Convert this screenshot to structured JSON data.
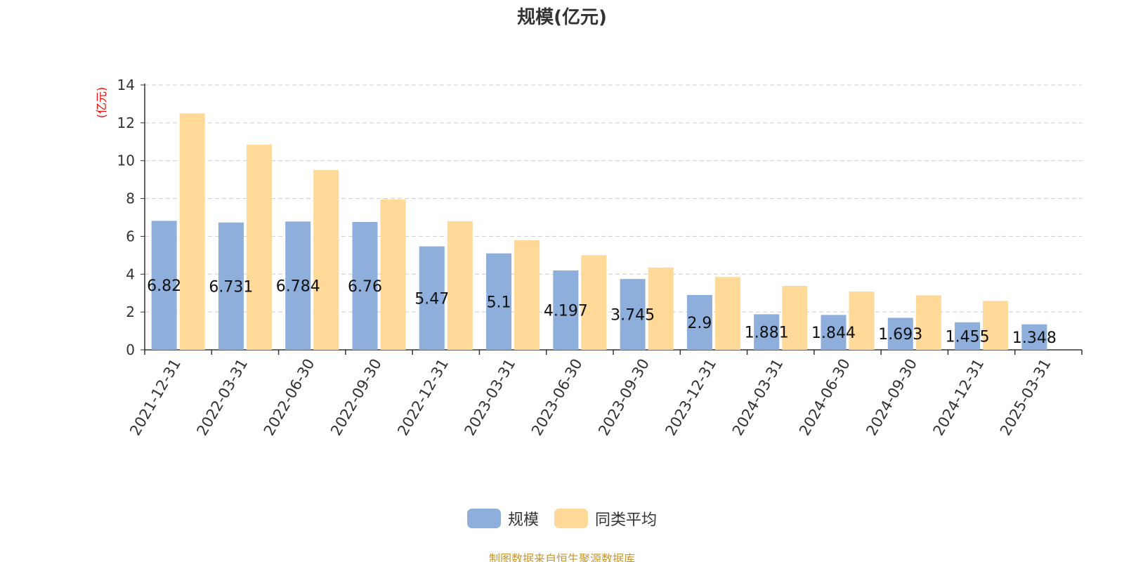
{
  "chart_data": {
    "type": "bar",
    "title": "规模(亿元)",
    "ylabel": "(亿元)",
    "ylim": [
      0,
      14
    ],
    "yticks": [
      0,
      2,
      4,
      6,
      8,
      10,
      12,
      14
    ],
    "categories": [
      "2021-12-31",
      "2022-03-31",
      "2022-06-30",
      "2022-09-30",
      "2022-12-31",
      "2023-03-31",
      "2023-06-30",
      "2023-09-30",
      "2023-12-31",
      "2024-03-31",
      "2024-06-30",
      "2024-09-30",
      "2024-12-31",
      "2025-03-31"
    ],
    "series": [
      {
        "name": "规模",
        "color": "#8eaedc",
        "values": [
          6.82,
          6.731,
          6.784,
          6.76,
          5.47,
          5.1,
          4.197,
          3.745,
          2.9,
          1.881,
          1.844,
          1.693,
          1.455,
          1.348
        ],
        "labels": [
          "6.82",
          "6.731",
          "6.784",
          "6.76",
          "5.47",
          "5.1",
          "4.197",
          "3.745",
          "2.9",
          "1.881",
          "1.844",
          "1.693",
          "1.455",
          "1.348"
        ]
      },
      {
        "name": "同类平均",
        "color": "#fed998",
        "values": [
          12.5,
          10.85,
          9.5,
          7.95,
          6.8,
          5.8,
          5.0,
          4.35,
          3.85,
          3.38,
          3.08,
          2.88,
          2.58,
          null
        ]
      }
    ],
    "grid": true,
    "legend_position": "bottom"
  },
  "source_note": "制图数据来自恒生聚源数据库",
  "colors": {
    "axis": "#333333",
    "grid": "#cccccc",
    "ylabel": "#ff0000",
    "source": "#c8962e"
  }
}
